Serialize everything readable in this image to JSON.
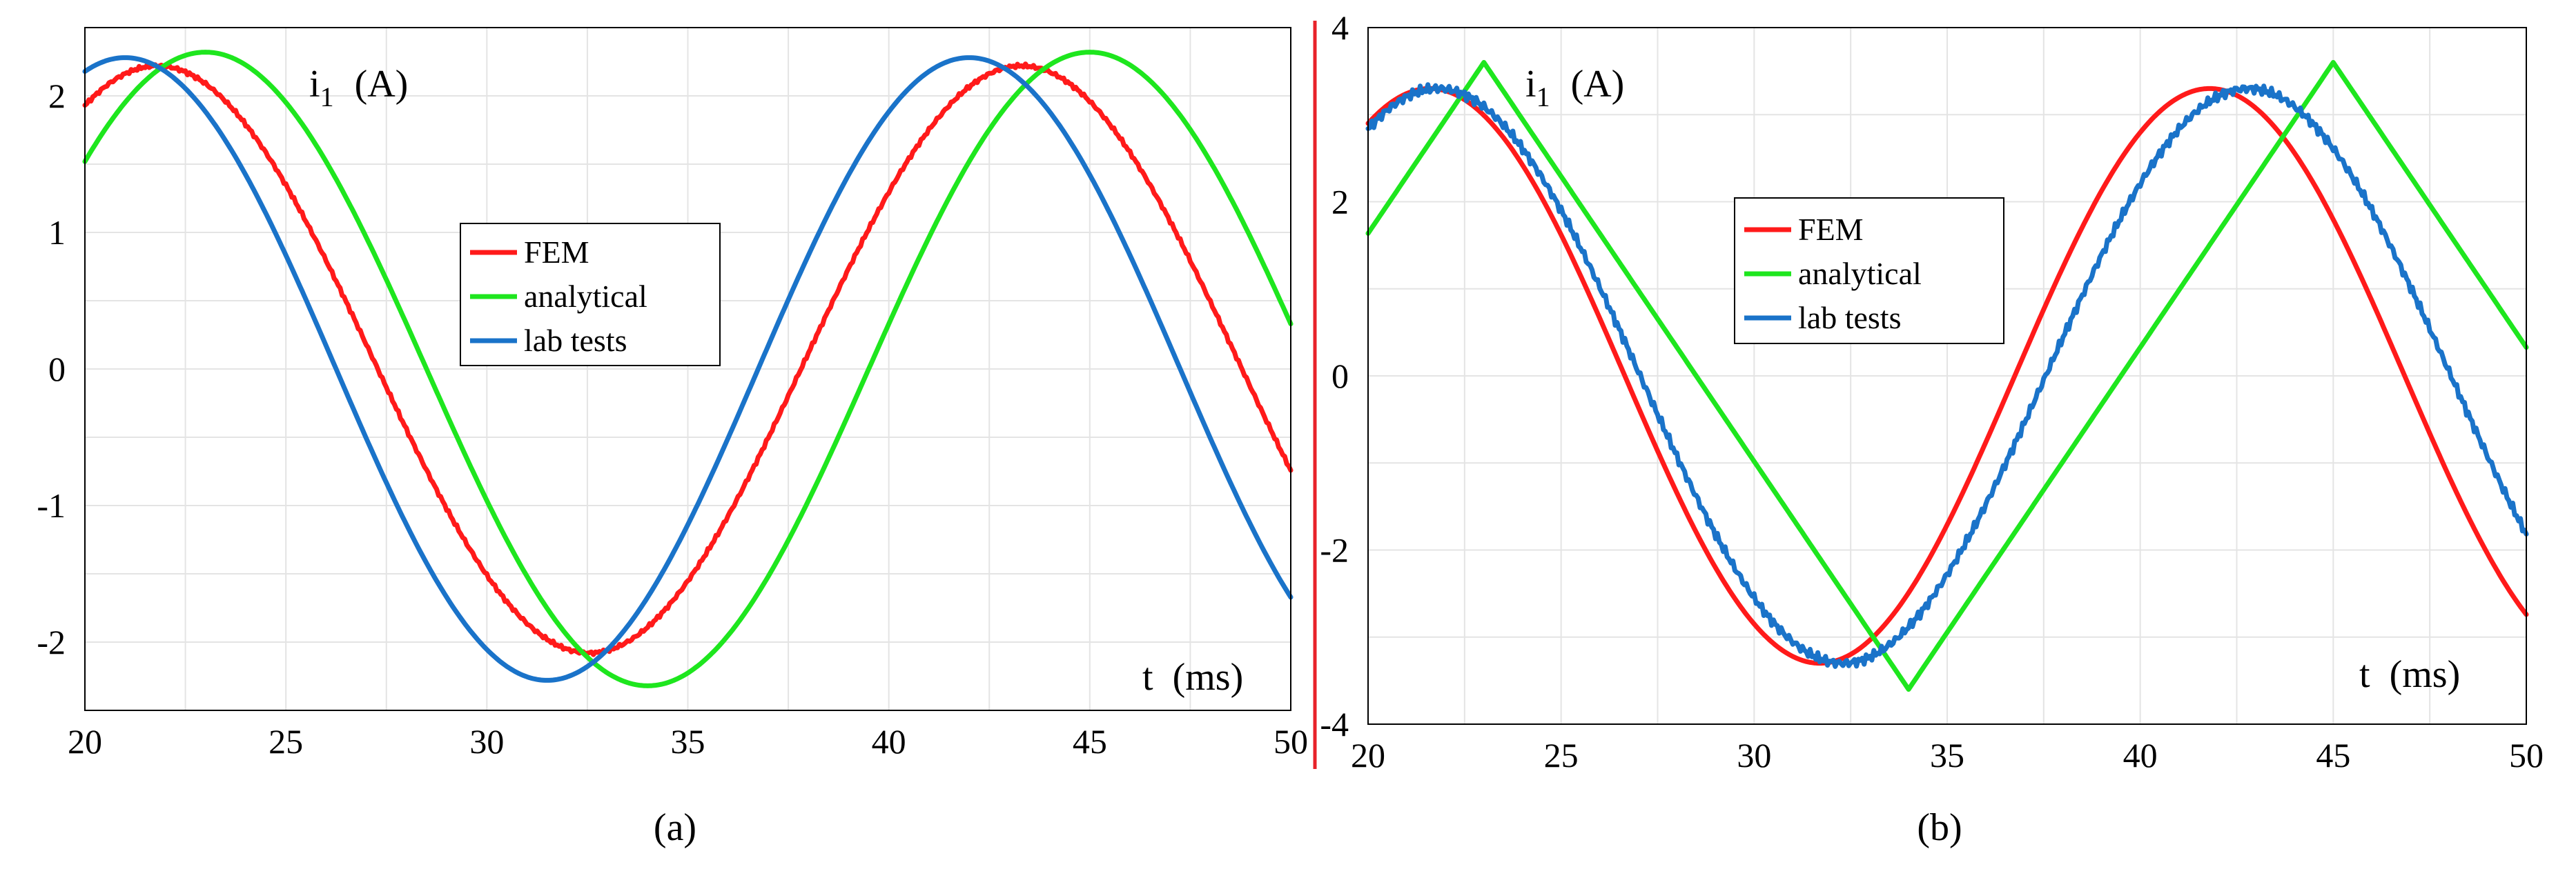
{
  "divider_color": "#e8232a",
  "chart_data": [
    {
      "type": "line",
      "panel": "a",
      "caption": "(a)",
      "ylabel_symbol": "i",
      "ylabel_subscript": "1",
      "ylabel_unit": "(A)",
      "xlabel_symbol": "t",
      "xlabel_unit": "(ms)",
      "xlim": [
        20,
        50
      ],
      "ylim": [
        -2.5,
        2.5
      ],
      "xticks": [
        20,
        25,
        30,
        35,
        40,
        45,
        50
      ],
      "yticks": [
        -2,
        -1,
        0,
        1,
        2
      ],
      "ytick_labels": [
        "-2",
        "-1",
        "0",
        "1",
        "2"
      ],
      "grid": true,
      "legend_position": "center",
      "series": [
        {
          "name": "FEM",
          "color": "#ff1a1a",
          "amplitude": 2.15,
          "offset": 0.07,
          "period_ms": 21.5,
          "peak_ms": 21.8,
          "noise": 0.015,
          "end_value": -0.77
        },
        {
          "name": "analytical",
          "color": "#1ee61e",
          "amplitude": 2.32,
          "offset": 0.0,
          "period_ms": 22.0,
          "peak_ms": 23.0,
          "noise": 0.0,
          "end_value": 0.45
        },
        {
          "name": "lab tests",
          "color": "#1a73c9",
          "amplitude": 2.28,
          "offset": 0.0,
          "period_ms": 21.0,
          "peak_ms": 21.0,
          "noise": 0.0,
          "end_value": -1.75
        }
      ]
    },
    {
      "type": "line",
      "panel": "b",
      "caption": "(b)",
      "ylabel_symbol": "i",
      "ylabel_subscript": "1",
      "ylabel_unit": "(A)",
      "xlabel_symbol": "t",
      "xlabel_unit": "(ms)",
      "xlim": [
        20,
        50
      ],
      "ylim": [
        -4,
        4
      ],
      "xticks": [
        20,
        25,
        30,
        35,
        40,
        45,
        50
      ],
      "yticks": [
        -4,
        -2,
        0,
        2,
        4
      ],
      "ytick_labels": [
        "-4",
        "-2",
        "0",
        "2",
        "4"
      ],
      "grid": true,
      "legend_position": "upper-center",
      "series": [
        {
          "name": "FEM",
          "color": "#ff1a1a",
          "amplitude": 3.3,
          "offset": 0.0,
          "period_ms": 20.2,
          "peak_ms": 21.6,
          "noise": 0.0,
          "end_value": -2.45
        },
        {
          "name": "analytical",
          "color": "#1ee61e",
          "amplitude": 3.6,
          "offset": 0.0,
          "period_ms": 22.0,
          "peak_ms": 23.0,
          "noise": 0.0,
          "end_value": 0.6,
          "shape": "triangular"
        },
        {
          "name": "lab tests",
          "color": "#1a73c9",
          "amplitude": 3.3,
          "offset": 0.0,
          "period_ms": 21.0,
          "peak_ms": 21.8,
          "noise": 0.06,
          "end_value": -1.85
        }
      ]
    }
  ]
}
